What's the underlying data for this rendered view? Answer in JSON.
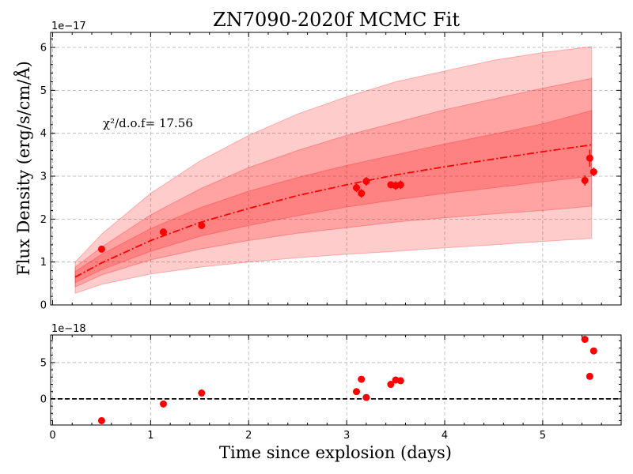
{
  "chart_data": {
    "type": "scatter",
    "title": "ZN7090-2020f MCMC Fit",
    "xlabel": "Time since explosion (days)",
    "ylabel": "Flux Density (erg/s/cm/Å)",
    "annotation": "χ²/d.o.f= 17.56",
    "x_ticks": [
      0,
      1,
      2,
      3,
      4,
      5
    ],
    "xlim": [
      -0.02,
      5.8
    ],
    "colors": {
      "points": "#ff0000",
      "model": "#ff0000",
      "band": "#ff0000"
    },
    "main": {
      "offset_text": "1e−17",
      "ylim": [
        0,
        6.35
      ],
      "y_ticks": [
        0,
        1,
        2,
        3,
        4,
        5,
        6
      ],
      "model_x": [
        0.23,
        0.5,
        1.0,
        1.5,
        2.0,
        2.5,
        3.0,
        3.5,
        4.0,
        4.5,
        5.0,
        5.5
      ],
      "model_y": [
        0.65,
        0.98,
        1.5,
        1.92,
        2.25,
        2.55,
        2.8,
        3.03,
        3.22,
        3.4,
        3.57,
        3.73
      ],
      "bands": [
        {
          "lower": [
            0.27,
            0.48,
            0.72,
            0.88,
            1.0,
            1.1,
            1.18,
            1.25,
            1.33,
            1.4,
            1.48,
            1.55
          ],
          "upper": [
            1.0,
            1.65,
            2.6,
            3.35,
            3.95,
            4.45,
            4.85,
            5.2,
            5.45,
            5.7,
            5.88,
            6.02
          ]
        },
        {
          "lower": [
            0.42,
            0.7,
            1.05,
            1.3,
            1.5,
            1.67,
            1.8,
            1.93,
            2.03,
            2.12,
            2.2,
            2.3
          ],
          "upper": [
            0.88,
            1.35,
            2.1,
            2.7,
            3.2,
            3.6,
            3.95,
            4.25,
            4.55,
            4.8,
            5.05,
            5.28
          ]
        },
        {
          "lower": [
            0.52,
            0.82,
            1.25,
            1.6,
            1.85,
            2.08,
            2.28,
            2.45,
            2.6,
            2.73,
            2.87,
            3.0
          ],
          "upper": [
            0.78,
            1.18,
            1.78,
            2.26,
            2.65,
            2.97,
            3.25,
            3.5,
            3.75,
            3.98,
            4.22,
            4.53
          ]
        }
      ],
      "points": [
        {
          "x": 0.5,
          "y": 1.3,
          "err": 0.05
        },
        {
          "x": 1.13,
          "y": 1.7,
          "err": 0.05
        },
        {
          "x": 1.52,
          "y": 1.85,
          "err": 0.05
        },
        {
          "x": 3.1,
          "y": 2.73,
          "err": 0.1
        },
        {
          "x": 3.15,
          "y": 2.6,
          "err": 0.1
        },
        {
          "x": 3.2,
          "y": 2.88,
          "err": 0.1
        },
        {
          "x": 3.45,
          "y": 2.8,
          "err": 0.08
        },
        {
          "x": 3.5,
          "y": 2.78,
          "err": 0.1
        },
        {
          "x": 3.55,
          "y": 2.8,
          "err": 0.1
        },
        {
          "x": 5.43,
          "y": 2.9,
          "err": 0.12
        },
        {
          "x": 5.48,
          "y": 3.42,
          "err": 0.2
        },
        {
          "x": 5.52,
          "y": 3.1,
          "err": 0.1
        }
      ]
    },
    "residuals": {
      "offset_text": "1e−18",
      "ylim": [
        -3.6,
        8.8
      ],
      "y_ticks": [
        0,
        5
      ],
      "zero_line": 0,
      "points": [
        {
          "x": 0.5,
          "y": -3.0
        },
        {
          "x": 1.13,
          "y": -0.7
        },
        {
          "x": 1.52,
          "y": 0.8
        },
        {
          "x": 3.1,
          "y": 1.0
        },
        {
          "x": 3.15,
          "y": 2.7
        },
        {
          "x": 3.2,
          "y": 0.2
        },
        {
          "x": 3.45,
          "y": 2.0
        },
        {
          "x": 3.5,
          "y": 2.6
        },
        {
          "x": 3.55,
          "y": 2.5
        },
        {
          "x": 5.43,
          "y": 8.2
        },
        {
          "x": 5.48,
          "y": 3.1
        },
        {
          "x": 5.52,
          "y": 6.6
        }
      ]
    }
  }
}
